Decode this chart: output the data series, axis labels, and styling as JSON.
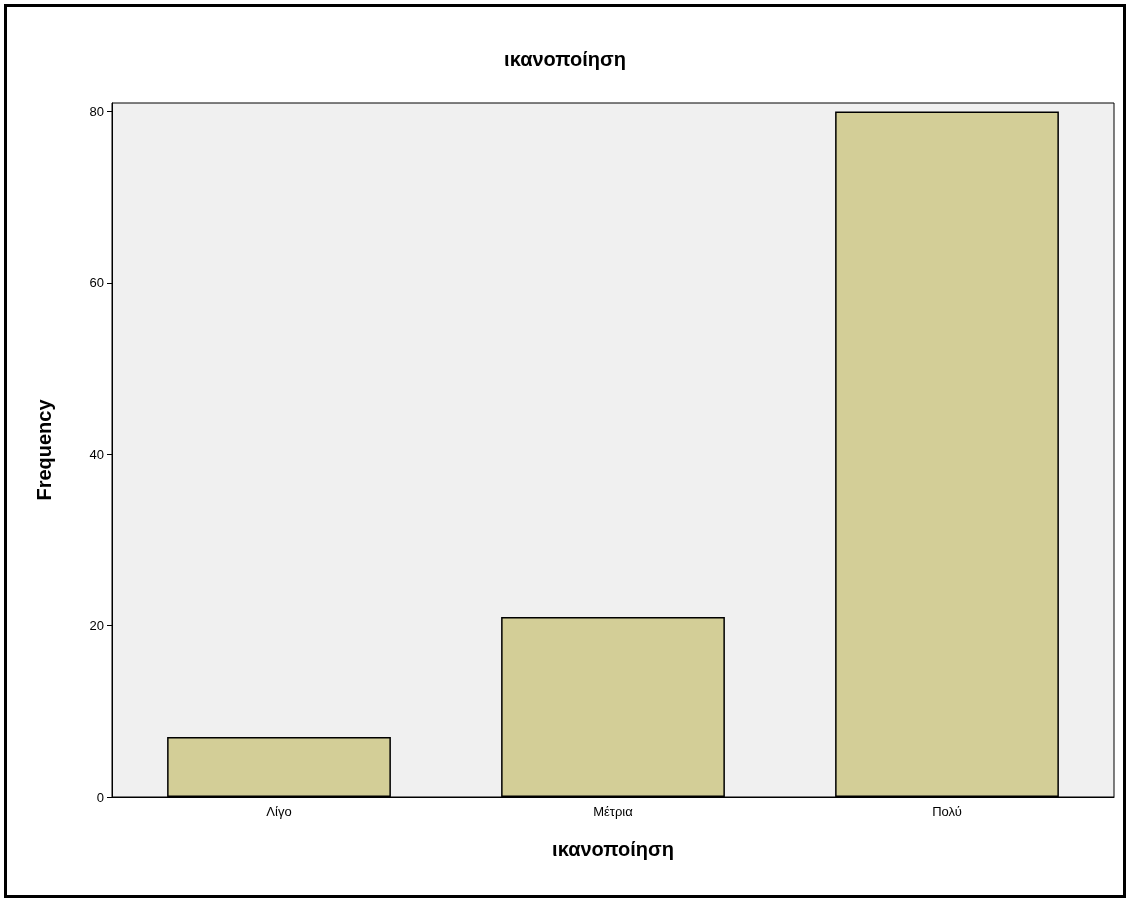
{
  "chart_data": {
    "type": "bar",
    "title": "ικανοποίηση",
    "xlabel": "ικανοποίηση",
    "ylabel": "Frequency",
    "categories": [
      "Λίγο",
      "Μέτρια",
      "Πολύ"
    ],
    "values": [
      7,
      21,
      80
    ],
    "color": "#d3ce97",
    "ylim": [
      0,
      81
    ],
    "yticks": [
      0,
      20,
      40,
      60,
      80
    ],
    "grid": false
  }
}
